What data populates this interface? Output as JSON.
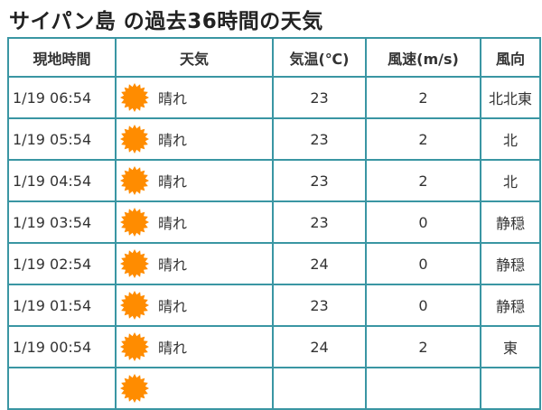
{
  "title": "サイパン島 の過去36時間の天気",
  "headers": [
    "現地時間",
    "天気",
    "気温(℃)",
    "風速(m/s)",
    "風向"
  ],
  "sun_color": "#ff8c00",
  "border_color": "#3a96a3",
  "rows": [
    {
      "time": "1/19 06:54",
      "icon": "sun-icon",
      "weather": "晴れ",
      "temp": "23",
      "wind_speed": "2",
      "wind_dir": "北北東"
    },
    {
      "time": "1/19 05:54",
      "icon": "sun-icon",
      "weather": "晴れ",
      "temp": "23",
      "wind_speed": "2",
      "wind_dir": "北"
    },
    {
      "time": "1/19 04:54",
      "icon": "sun-icon",
      "weather": "晴れ",
      "temp": "23",
      "wind_speed": "2",
      "wind_dir": "北"
    },
    {
      "time": "1/19 03:54",
      "icon": "sun-icon",
      "weather": "晴れ",
      "temp": "23",
      "wind_speed": "0",
      "wind_dir": "静穏"
    },
    {
      "time": "1/19 02:54",
      "icon": "sun-icon",
      "weather": "晴れ",
      "temp": "24",
      "wind_speed": "0",
      "wind_dir": "静穏"
    },
    {
      "time": "1/19 01:54",
      "icon": "sun-icon",
      "weather": "晴れ",
      "temp": "23",
      "wind_speed": "0",
      "wind_dir": "静穏"
    },
    {
      "time": "1/19 00:54",
      "icon": "sun-icon",
      "weather": "晴れ",
      "temp": "24",
      "wind_speed": "2",
      "wind_dir": "東"
    }
  ]
}
